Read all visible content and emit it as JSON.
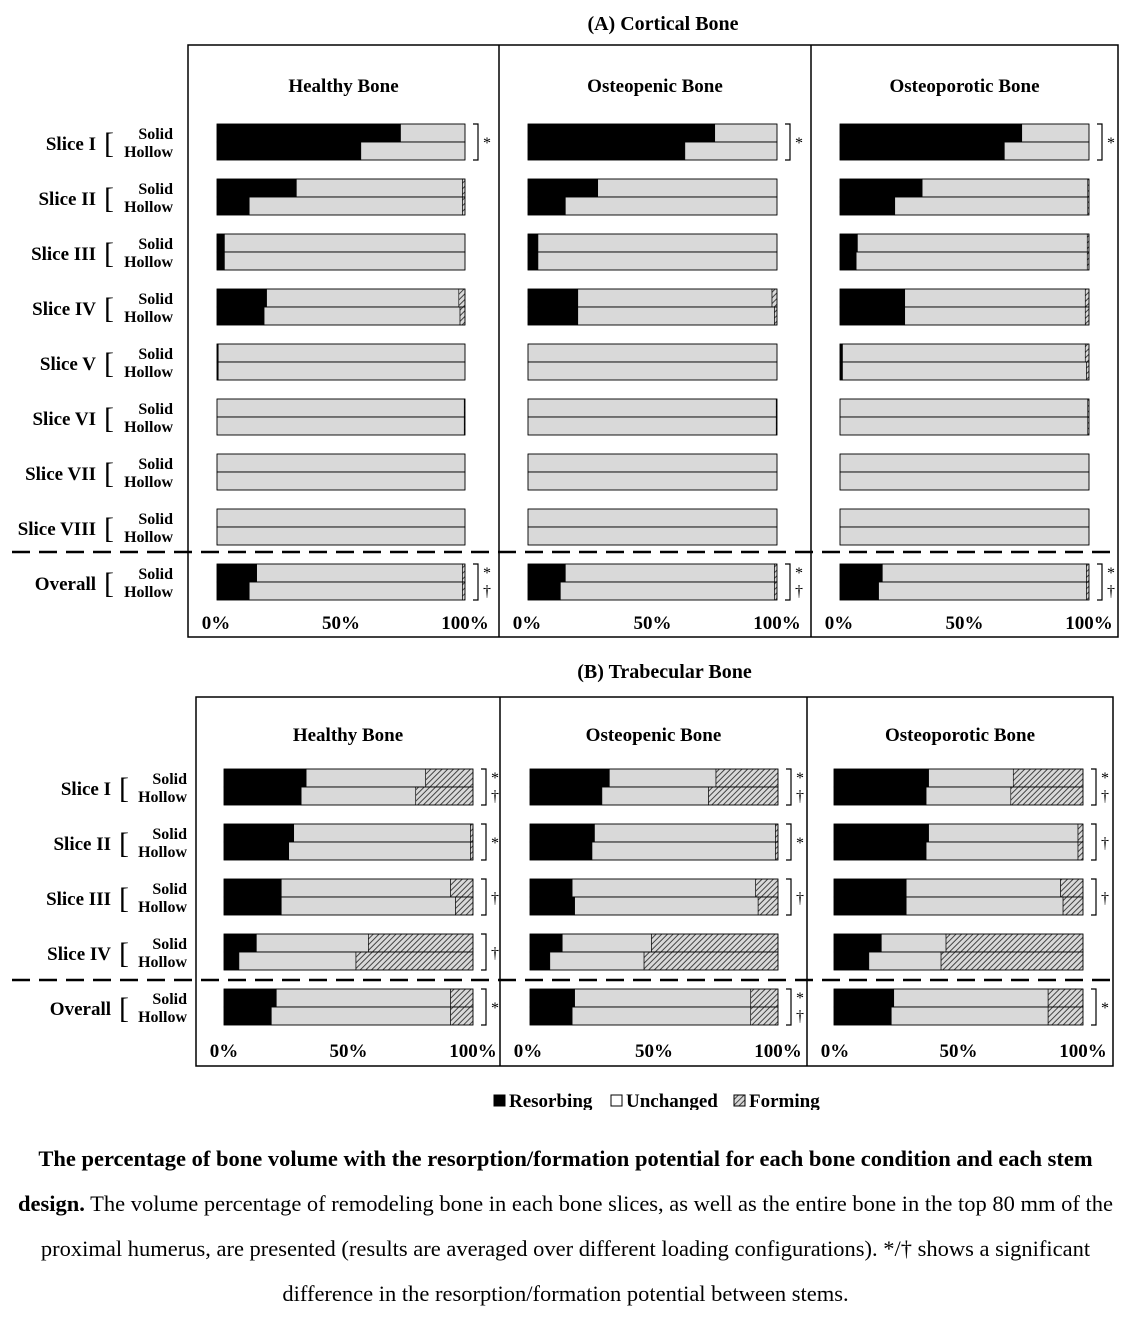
{
  "colors": {
    "resorbing": "#000000",
    "unchanged": "#d9d9d9",
    "forming": "hatched-gray",
    "frame": "#000000"
  },
  "legend": {
    "items": [
      "Resorbing",
      "Unchanged",
      "Forming"
    ],
    "placement": "bottom-center",
    "symbols": [
      "■",
      "□",
      "▨"
    ]
  },
  "caption": {
    "bold": "The percentage of bone volume with the resorption/formation potential for each bone condition and each stem design.",
    "text": " The volume percentage of remodeling bone in each bone slices, as well as the entire bone in the top 80 mm of the proximal humerus, are presented (results are averaged over different loading configurations). */† shows a significant difference in the resorption/formation potential between stems."
  },
  "chart_data": [
    {
      "type": "bar",
      "orientation": "horizontal",
      "stacked": true,
      "title": "(A) Cortical Bone",
      "panels": [
        "Healthy Bone",
        "Osteopenic Bone",
        "Osteoporotic Bone"
      ],
      "groups": [
        "Slice I",
        "Slice II",
        "Slice III",
        "Slice IV",
        "Slice V",
        "Slice VI",
        "Slice VII",
        "Slice VIII",
        "Overall"
      ],
      "stems": [
        "Solid",
        "Hollow"
      ],
      "series_names": [
        "Resorbing",
        "Unchanged",
        "Forming"
      ],
      "xticks": [
        "0%",
        "50%",
        "100%"
      ],
      "xlim": [
        0,
        100
      ],
      "data": [
        [
          {
            "solid": [
              74,
              26,
              0
            ],
            "hollow": [
              58,
              42,
              0
            ],
            "marks": [
              "*"
            ]
          },
          {
            "solid": [
              32,
              67,
              1
            ],
            "hollow": [
              13,
              86,
              1
            ],
            "marks": []
          },
          {
            "solid": [
              3,
              97,
              0
            ],
            "hollow": [
              3,
              97,
              0
            ],
            "marks": []
          },
          {
            "solid": [
              20,
              77.5,
              2.5
            ],
            "hollow": [
              19,
              79,
              2
            ],
            "marks": []
          },
          {
            "solid": [
              0.5,
              99.5,
              0
            ],
            "hollow": [
              0.5,
              99.5,
              0
            ],
            "marks": []
          },
          {
            "solid": [
              0,
              99.7,
              0.3
            ],
            "hollow": [
              0,
              99.7,
              0.3
            ],
            "marks": []
          },
          {
            "solid": [
              0,
              100,
              0
            ],
            "hollow": [
              0,
              100,
              0
            ],
            "marks": []
          },
          {
            "solid": [
              0,
              100,
              0
            ],
            "hollow": [
              0,
              100,
              0
            ],
            "marks": []
          },
          {
            "solid": [
              16,
              83,
              1
            ],
            "hollow": [
              13,
              86,
              1
            ],
            "marks": [
              "*",
              "†"
            ]
          }
        ],
        [
          {
            "solid": [
              75,
              25,
              0
            ],
            "hollow": [
              63,
              37,
              0
            ],
            "marks": [
              "*"
            ]
          },
          {
            "solid": [
              28,
              72,
              0
            ],
            "hollow": [
              15,
              85,
              0
            ],
            "marks": []
          },
          {
            "solid": [
              4,
              96,
              0
            ],
            "hollow": [
              4,
              96,
              0
            ],
            "marks": []
          },
          {
            "solid": [
              20,
              78,
              2
            ],
            "hollow": [
              20,
              79,
              1
            ],
            "marks": []
          },
          {
            "solid": [
              0,
              100,
              0
            ],
            "hollow": [
              0,
              100,
              0
            ],
            "marks": []
          },
          {
            "solid": [
              0,
              99.7,
              0.3
            ],
            "hollow": [
              0,
              99.7,
              0.3
            ],
            "marks": []
          },
          {
            "solid": [
              0,
              100,
              0
            ],
            "hollow": [
              0,
              100,
              0
            ],
            "marks": []
          },
          {
            "solid": [
              0,
              100,
              0
            ],
            "hollow": [
              0,
              100,
              0
            ],
            "marks": []
          },
          {
            "solid": [
              15,
              84,
              1
            ],
            "hollow": [
              13,
              86,
              1
            ],
            "marks": [
              "*",
              "†"
            ]
          }
        ],
        [
          {
            "solid": [
              73,
              27,
              0
            ],
            "hollow": [
              66,
              34,
              0
            ],
            "marks": [
              "*"
            ]
          },
          {
            "solid": [
              33,
              66.5,
              0.5
            ],
            "hollow": [
              22,
              77.5,
              0.5
            ],
            "marks": []
          },
          {
            "solid": [
              7,
              92.3,
              0.7
            ],
            "hollow": [
              6.5,
              92.8,
              0.7
            ],
            "marks": []
          },
          {
            "solid": [
              26,
              72.5,
              1.5
            ],
            "hollow": [
              26,
              72.5,
              1.5
            ],
            "marks": []
          },
          {
            "solid": [
              1,
              97.5,
              1.5
            ],
            "hollow": [
              1,
              98,
              1
            ],
            "marks": []
          },
          {
            "solid": [
              0,
              99.5,
              0.5
            ],
            "hollow": [
              0,
              99.5,
              0.5
            ],
            "marks": []
          },
          {
            "solid": [
              0,
              100,
              0
            ],
            "hollow": [
              0,
              100,
              0
            ],
            "marks": []
          },
          {
            "solid": [
              0,
              100,
              0
            ],
            "hollow": [
              0,
              100,
              0
            ],
            "marks": []
          },
          {
            "solid": [
              17,
              82,
              1
            ],
            "hollow": [
              15.5,
              83.5,
              1
            ],
            "marks": [
              "*",
              "†"
            ]
          }
        ]
      ]
    },
    {
      "type": "bar",
      "orientation": "horizontal",
      "stacked": true,
      "title": "(B) Trabecular Bone",
      "panels": [
        "Healthy Bone",
        "Osteopenic Bone",
        "Osteoporotic Bone"
      ],
      "groups": [
        "Slice I",
        "Slice II",
        "Slice III",
        "Slice IV",
        "Overall"
      ],
      "stems": [
        "Solid",
        "Hollow"
      ],
      "series_names": [
        "Resorbing",
        "Unchanged",
        "Forming"
      ],
      "xticks": [
        "0%",
        "50%",
        "100%"
      ],
      "xlim": [
        0,
        100
      ],
      "data": [
        [
          {
            "solid": [
              33,
              48,
              19
            ],
            "hollow": [
              31,
              46,
              23
            ],
            "marks": [
              "*",
              "†"
            ]
          },
          {
            "solid": [
              28,
              71,
              1
            ],
            "hollow": [
              26,
              73,
              1
            ],
            "marks": [
              "*"
            ]
          },
          {
            "solid": [
              23,
              68,
              9
            ],
            "hollow": [
              23,
              70,
              7
            ],
            "marks": [
              "†"
            ]
          },
          {
            "solid": [
              13,
              45,
              42
            ],
            "hollow": [
              6,
              47,
              47
            ],
            "marks": [
              "†"
            ]
          },
          {
            "solid": [
              21,
              70,
              9
            ],
            "hollow": [
              19,
              72,
              9
            ],
            "marks": [
              "*"
            ]
          }
        ],
        [
          {
            "solid": [
              32,
              43,
              25
            ],
            "hollow": [
              29,
              43,
              28
            ],
            "marks": [
              "*",
              "†"
            ]
          },
          {
            "solid": [
              26,
              73,
              1
            ],
            "hollow": [
              25,
              74,
              1
            ],
            "marks": [
              "*"
            ]
          },
          {
            "solid": [
              17,
              74,
              9
            ],
            "hollow": [
              18,
              74,
              8
            ],
            "marks": [
              "†"
            ]
          },
          {
            "solid": [
              13,
              36,
              51
            ],
            "hollow": [
              8,
              38,
              54
            ],
            "marks": []
          },
          {
            "solid": [
              18,
              71,
              11
            ],
            "hollow": [
              17,
              72,
              11
            ],
            "marks": [
              "*",
              "†"
            ]
          }
        ],
        [
          {
            "solid": [
              38,
              34,
              28
            ],
            "hollow": [
              37,
              34,
              29
            ],
            "marks": [
              "*",
              "†"
            ]
          },
          {
            "solid": [
              38,
              60,
              2
            ],
            "hollow": [
              37,
              61,
              2
            ],
            "marks": [
              "†"
            ]
          },
          {
            "solid": [
              29,
              62,
              9
            ],
            "hollow": [
              29,
              63,
              8
            ],
            "marks": [
              "†"
            ]
          },
          {
            "solid": [
              19,
              26,
              55
            ],
            "hollow": [
              14,
              29,
              57
            ],
            "marks": []
          },
          {
            "solid": [
              24,
              62,
              14
            ],
            "hollow": [
              23,
              63,
              14
            ],
            "marks": [
              "*"
            ]
          }
        ]
      ]
    }
  ]
}
